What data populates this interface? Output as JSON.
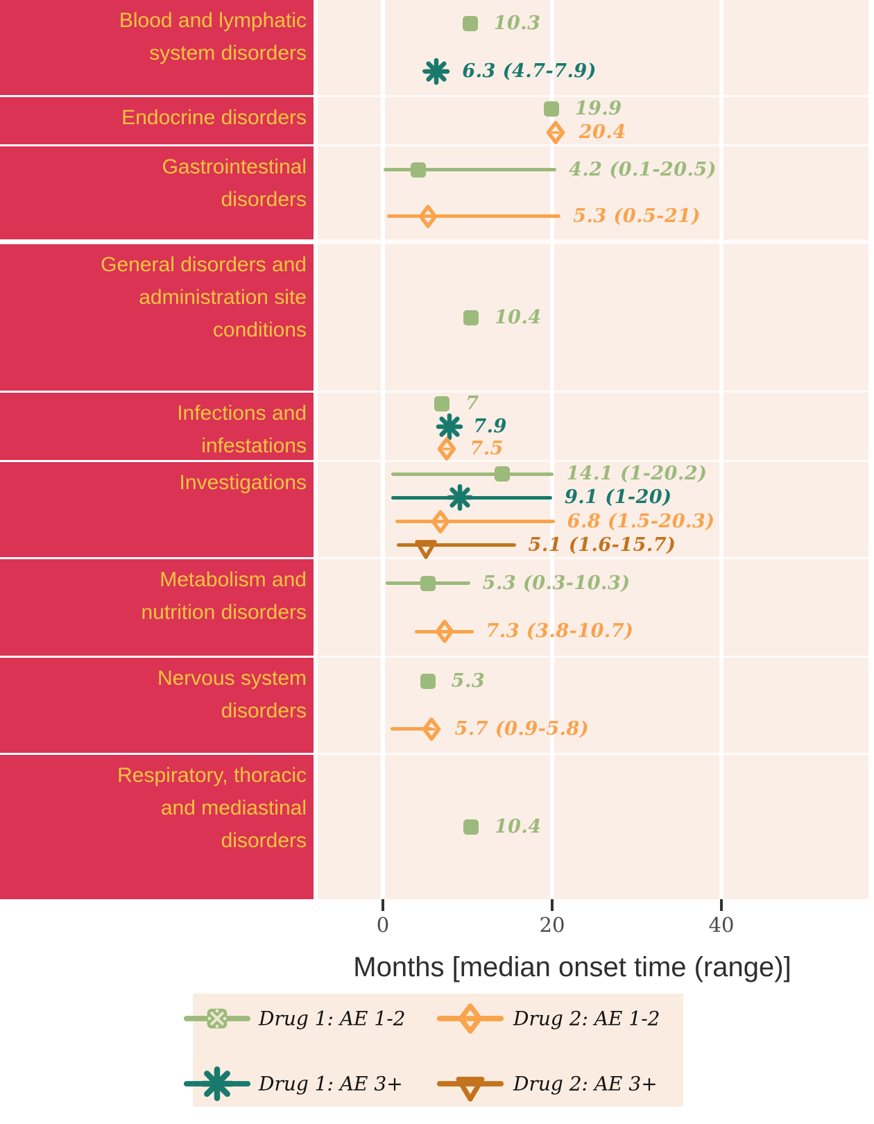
{
  "chart_data": {
    "type": "scatter",
    "title": "",
    "xlabel": "Months [median onset time (range)]",
    "x_ticks": [
      0,
      20,
      40
    ],
    "xlim": [
      -7.5,
      57
    ],
    "grid": {
      "vertical_major": true,
      "color": "#FFFFFF"
    },
    "legend_position": "bottom",
    "series": [
      {
        "id": "d1ae12",
        "name": "Drug 1: AE 1-2",
        "marker": "square",
        "color": "#9CBA7B"
      },
      {
        "id": "d1ae3",
        "name": "Drug 1: AE 3+",
        "marker": "asterisk",
        "color": "#19796D"
      },
      {
        "id": "d2ae12",
        "name": "Drug 2: AE 1-2",
        "marker": "diamond-open",
        "color": "#F9A34C"
      },
      {
        "id": "d2ae3",
        "name": "Drug 2: AE 3+",
        "marker": "triangle-down-open",
        "color": "#C3731D"
      }
    ],
    "categories": [
      {
        "name": "Blood and lymphatic system disorders",
        "lines": [
          "Blood and lymphatic",
          "system disorders"
        ],
        "points": [
          {
            "series": "d1ae12",
            "median": 10.3,
            "label": "10.3"
          },
          {
            "series": "d1ae3",
            "median": 6.3,
            "min": 4.7,
            "max": 7.9,
            "label": "6.3 (4.7-7.9)"
          }
        ]
      },
      {
        "name": "Endocrine disorders",
        "lines": [
          "Endocrine disorders"
        ],
        "points": [
          {
            "series": "d1ae12",
            "median": 19.9,
            "label": "19.9"
          },
          {
            "series": "d2ae12",
            "median": 20.4,
            "label": "20.4"
          }
        ]
      },
      {
        "name": "Gastrointestinal disorders",
        "lines": [
          "Gastrointestinal",
          "disorders"
        ],
        "points": [
          {
            "series": "d1ae12",
            "median": 4.2,
            "min": 0.1,
            "max": 20.5,
            "label": "4.2 (0.1-20.5)"
          },
          {
            "series": "d2ae12",
            "median": 5.3,
            "min": 0.5,
            "max": 21,
            "label": "5.3 (0.5-21)"
          }
        ]
      },
      {
        "name": "General disorders and administration site conditions",
        "lines": [
          "General disorders and",
          "administration site",
          "conditions"
        ],
        "points": [
          {
            "series": "d1ae12",
            "median": 10.4,
            "label": "10.4"
          }
        ]
      },
      {
        "name": "Infections and infestations",
        "lines": [
          "Infections and",
          "infestations"
        ],
        "points": [
          {
            "series": "d1ae12",
            "median": 7,
            "label": "7"
          },
          {
            "series": "d1ae3",
            "median": 7.9,
            "label": "7.9"
          },
          {
            "series": "d2ae12",
            "median": 7.5,
            "label": "7.5"
          }
        ]
      },
      {
        "name": "Investigations",
        "lines": [
          "Investigations"
        ],
        "points": [
          {
            "series": "d1ae12",
            "median": 14.1,
            "min": 1,
            "max": 20.2,
            "label": "14.1 (1-20.2)"
          },
          {
            "series": "d1ae3",
            "median": 9.1,
            "min": 1,
            "max": 20,
            "label": "9.1 (1-20)"
          },
          {
            "series": "d2ae12",
            "median": 6.8,
            "min": 1.5,
            "max": 20.3,
            "label": "6.8 (1.5-20.3)"
          },
          {
            "series": "d2ae3",
            "median": 5.1,
            "min": 1.6,
            "max": 15.7,
            "label": "5.1 (1.6-15.7)"
          }
        ]
      },
      {
        "name": "Metabolism and nutrition disorders",
        "lines": [
          "Metabolism and",
          "nutrition disorders"
        ],
        "points": [
          {
            "series": "d1ae12",
            "median": 5.3,
            "min": 0.3,
            "max": 10.3,
            "label": "5.3 (0.3-10.3)"
          },
          {
            "series": "d2ae12",
            "median": 7.3,
            "min": 3.8,
            "max": 10.7,
            "label": "7.3 (3.8-10.7)"
          }
        ]
      },
      {
        "name": "Nervous system disorders",
        "lines": [
          "Nervous system",
          "disorders"
        ],
        "points": [
          {
            "series": "d1ae12",
            "median": 5.3,
            "label": "5.3"
          },
          {
            "series": "d2ae12",
            "median": 5.7,
            "min": 0.9,
            "max": 5.8,
            "label": "5.7 (0.9-5.8)"
          }
        ]
      },
      {
        "name": "Respiratory, thoracic and mediastinal disorders",
        "lines": [
          "Respiratory, thoracic",
          "and mediastinal",
          "disorders"
        ],
        "points": [
          {
            "series": "d1ae12",
            "median": 10.4,
            "label": "10.4"
          }
        ]
      }
    ]
  },
  "legend": {
    "items": [
      {
        "series": "d1ae12",
        "label": "Drug 1: AE 1-2"
      },
      {
        "series": "d2ae12",
        "label": "Drug 2: AE 1-2"
      },
      {
        "series": "d1ae3",
        "label": "Drug 1: AE 3+"
      },
      {
        "series": "d2ae3",
        "label": "Drug 2: AE 3+"
      }
    ]
  },
  "colors": {
    "category_panel": "#DB3353",
    "category_text": "#F2C63E",
    "plot_bg": "#FBEEE7",
    "legend_bg": "#FAECE1",
    "gridline": "#FFFFFF",
    "axis_tick": "#333333",
    "tick_label": "#4A4A4A",
    "axis_title": "#2E2E2E",
    "legend_text": "#111111"
  }
}
